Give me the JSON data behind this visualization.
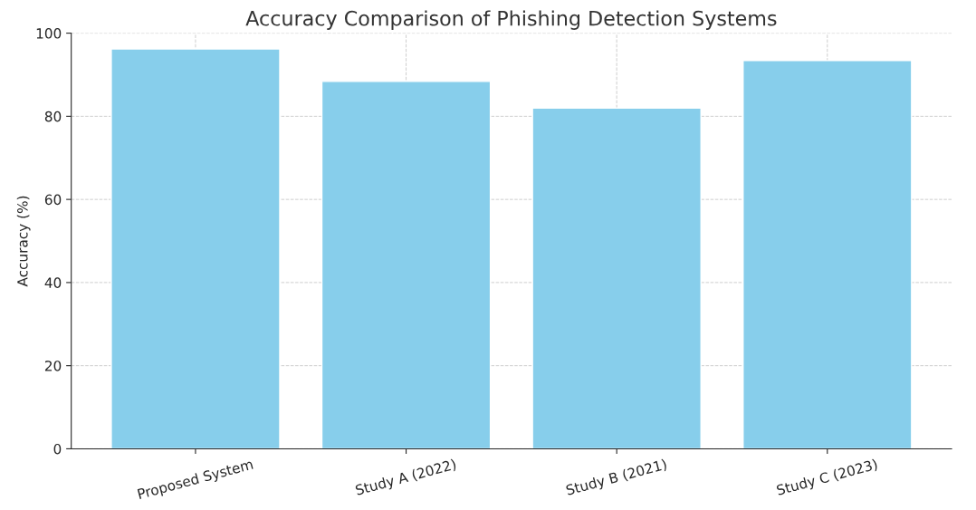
{
  "chart_data": {
    "type": "bar",
    "title": "Accuracy Comparison of Phishing Detection Systems",
    "ylabel": "Accuracy (%)",
    "categories": [
      "Proposed System",
      "Study A (2022)",
      "Study B (2021)",
      "Study C (2023)"
    ],
    "values": [
      96.2,
      88.4,
      82.0,
      93.4
    ],
    "color": "#87ceeb",
    "ylim": [
      0,
      100
    ],
    "yticks": [
      0,
      20,
      40,
      60,
      80,
      100
    ],
    "grid": true
  }
}
